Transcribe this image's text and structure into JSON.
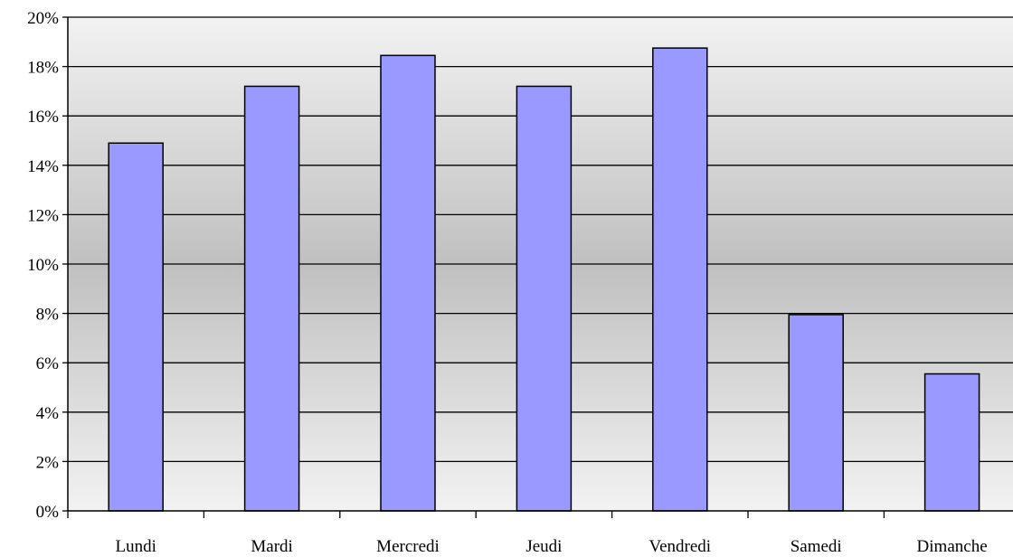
{
  "chart_data": {
    "type": "bar",
    "categories": [
      "Lundi",
      "Mardi",
      "Mercredi",
      "Jeudi",
      "Vendredi",
      "Samedi",
      "Dimanche"
    ],
    "values": [
      0.149,
      0.172,
      0.1845,
      0.172,
      0.1875,
      0.0795,
      0.0555
    ],
    "ylim": [
      0,
      0.2
    ],
    "yticks": [
      0,
      0.02,
      0.04,
      0.06,
      0.08,
      0.1,
      0.12,
      0.14,
      0.16,
      0.18,
      0.2
    ],
    "ytick_labels": [
      "0%",
      "2%",
      "4%",
      "6%",
      "8%",
      "10%",
      "12%",
      "14%",
      "16%",
      "18%",
      "20%"
    ],
    "grid": true,
    "legend": "none",
    "bar_color": "#9999ff",
    "bar_stroke": "#000000",
    "background_gradient": [
      "#f2f2f2",
      "#c0c0c0",
      "#f2f2f2"
    ]
  }
}
